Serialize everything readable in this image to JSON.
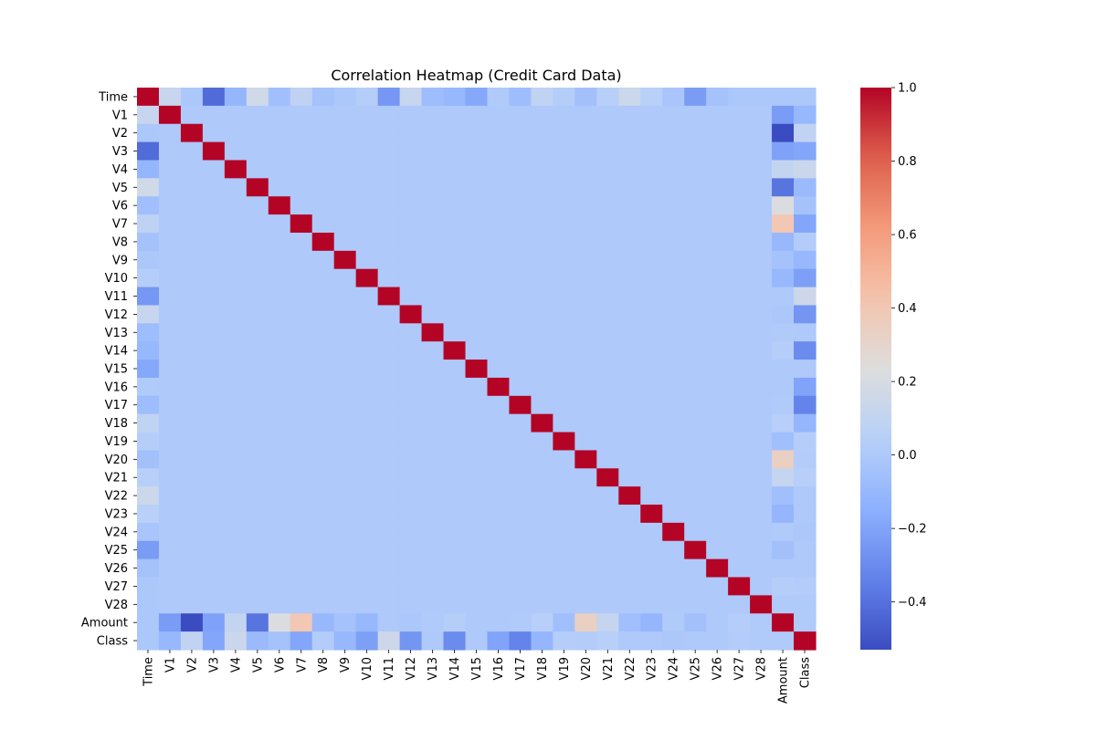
{
  "chart_data": {
    "type": "heatmap",
    "title": "Correlation Heatmap (Credit Card Data)",
    "labels": [
      "Time",
      "V1",
      "V2",
      "V3",
      "V4",
      "V5",
      "V6",
      "V7",
      "V8",
      "V9",
      "V10",
      "V11",
      "V12",
      "V13",
      "V14",
      "V15",
      "V16",
      "V17",
      "V18",
      "V19",
      "V20",
      "V21",
      "V22",
      "V23",
      "V24",
      "V25",
      "V26",
      "V27",
      "V28",
      "Amount",
      "Class"
    ],
    "colormap": "coolwarm",
    "vmin": -0.53,
    "vmax": 1.0,
    "colorbar_ticks": [
      -0.4,
      -0.2,
      0.0,
      0.2,
      0.4,
      0.6,
      0.8,
      1.0
    ],
    "colorbar_tick_labels": [
      "−0.4",
      "−0.2",
      "0.0",
      "0.2",
      "0.4",
      "0.6",
      "0.8",
      "1.0"
    ],
    "time_correlations": [
      1.0,
      0.12,
      -0.01,
      -0.42,
      -0.11,
      0.17,
      -0.06,
      0.08,
      -0.04,
      -0.01,
      0.03,
      -0.25,
      0.12,
      -0.07,
      -0.1,
      -0.18,
      0.01,
      -0.07,
      0.09,
      0.03,
      -0.05,
      0.04,
      0.14,
      0.05,
      -0.02,
      -0.23,
      -0.04,
      -0.01,
      -0.01,
      -0.01,
      -0.01
    ],
    "amount_correlations": [
      -0.01,
      -0.23,
      -0.53,
      -0.21,
      0.1,
      -0.39,
      0.22,
      0.4,
      -0.1,
      -0.04,
      -0.1,
      0.0,
      -0.01,
      0.01,
      0.03,
      -0.0,
      -0.0,
      0.01,
      0.04,
      -0.06,
      0.34,
      0.11,
      -0.06,
      -0.11,
      0.01,
      -0.05,
      -0.0,
      0.03,
      0.01,
      1.0,
      0.01
    ],
    "class_correlations": [
      -0.01,
      -0.1,
      0.09,
      -0.19,
      0.13,
      -0.09,
      -0.04,
      -0.19,
      0.02,
      -0.1,
      -0.22,
      0.15,
      -0.26,
      -0.0,
      -0.3,
      -0.0,
      -0.2,
      -0.33,
      -0.11,
      0.03,
      0.02,
      0.04,
      0.0,
      -0.0,
      -0.01,
      0.0,
      0.0,
      0.02,
      0.01,
      0.01,
      1.0
    ],
    "other_off_diagonal": 0.0
  }
}
